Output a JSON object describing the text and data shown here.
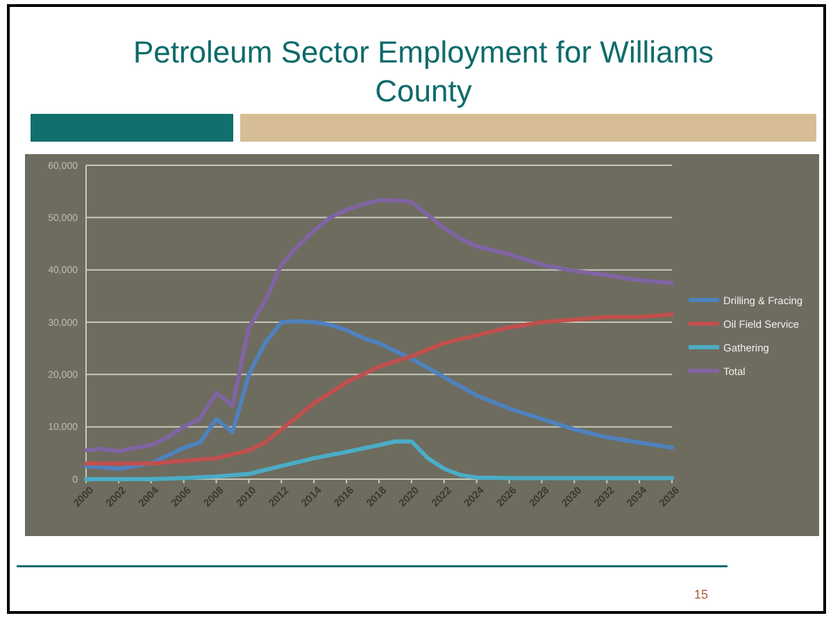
{
  "chart_data": {
    "type": "line",
    "title": "Petroleum Sector Employment for Williams County",
    "annotations": [
      "15"
    ],
    "ylim": [
      0,
      60000
    ],
    "yticks": [
      {
        "value": 0,
        "label": "0"
      },
      {
        "value": 10000,
        "label": "10,000"
      },
      {
        "value": 20000,
        "label": "20,000"
      },
      {
        "value": 30000,
        "label": "30,000"
      },
      {
        "value": 40000,
        "label": "40,000"
      },
      {
        "value": 50000,
        "label": "50,000"
      },
      {
        "value": 60000,
        "label": "60,000"
      }
    ],
    "xlim": [
      2000,
      2036
    ],
    "xticks": [
      2000,
      2002,
      2004,
      2006,
      2008,
      2010,
      2012,
      2014,
      2016,
      2018,
      2020,
      2022,
      2024,
      2026,
      2028,
      2030,
      2032,
      2034,
      2036
    ],
    "grid": "y",
    "legend": "right",
    "marker": "none",
    "line_style": "solid",
    "series": [
      {
        "name": "Drilling & Fracing",
        "color": "#4f81bd",
        "x": [
          2000,
          2002,
          2004,
          2006,
          2007,
          2008,
          2009,
          2010,
          2011,
          2012,
          2013,
          2014,
          2015,
          2016,
          2017,
          2018,
          2019,
          2020,
          2022,
          2024,
          2026,
          2028,
          2030,
          2032,
          2034,
          2036
        ],
        "values": [
          2500,
          2000,
          3000,
          6000,
          7000,
          11500,
          9000,
          20000,
          26000,
          30000,
          30200,
          30000,
          29500,
          28500,
          27000,
          26000,
          24500,
          23000,
          19500,
          16000,
          13500,
          11500,
          9500,
          8000,
          7000,
          6000
        ]
      },
      {
        "name": "Oil Field Service",
        "color": "#c0504d",
        "x": [
          2000,
          2002,
          2004,
          2006,
          2008,
          2010,
          2011,
          2012,
          2013,
          2014,
          2015,
          2016,
          2017,
          2018,
          2019,
          2020,
          2022,
          2024,
          2026,
          2028,
          2030,
          2032,
          2034,
          2036
        ],
        "values": [
          3000,
          3000,
          3000,
          3500,
          4000,
          5500,
          7000,
          9500,
          12000,
          14500,
          16500,
          18500,
          20000,
          21500,
          22500,
          23500,
          26000,
          27500,
          29000,
          30000,
          30500,
          31000,
          31000,
          31500
        ]
      },
      {
        "name": "Gathering",
        "color": "#4bacc6",
        "x": [
          2000,
          2004,
          2006,
          2008,
          2010,
          2012,
          2014,
          2016,
          2018,
          2019,
          2020,
          2021,
          2022,
          2023,
          2024,
          2026,
          2030,
          2036
        ],
        "values": [
          0,
          0,
          200,
          500,
          1000,
          2500,
          4000,
          5200,
          6500,
          7200,
          7200,
          4000,
          2000,
          800,
          300,
          200,
          200,
          200
        ]
      },
      {
        "name": "Total",
        "color": "#8064a2",
        "x": [
          2000,
          2001,
          2002,
          2003,
          2004,
          2005,
          2006,
          2007,
          2008,
          2009,
          2010,
          2011,
          2012,
          2013,
          2014,
          2015,
          2016,
          2017,
          2018,
          2019,
          2020,
          2021,
          2022,
          2023,
          2024,
          2026,
          2028,
          2030,
          2032,
          2034,
          2036
        ],
        "values": [
          5500,
          5800,
          5300,
          6000,
          6500,
          8000,
          10000,
          11500,
          16500,
          14000,
          29000,
          34000,
          41000,
          44500,
          47500,
          50000,
          51500,
          52500,
          53300,
          53300,
          53000,
          50500,
          48000,
          46000,
          44500,
          43000,
          41000,
          39800,
          39000,
          38000,
          37500
        ]
      }
    ]
  }
}
